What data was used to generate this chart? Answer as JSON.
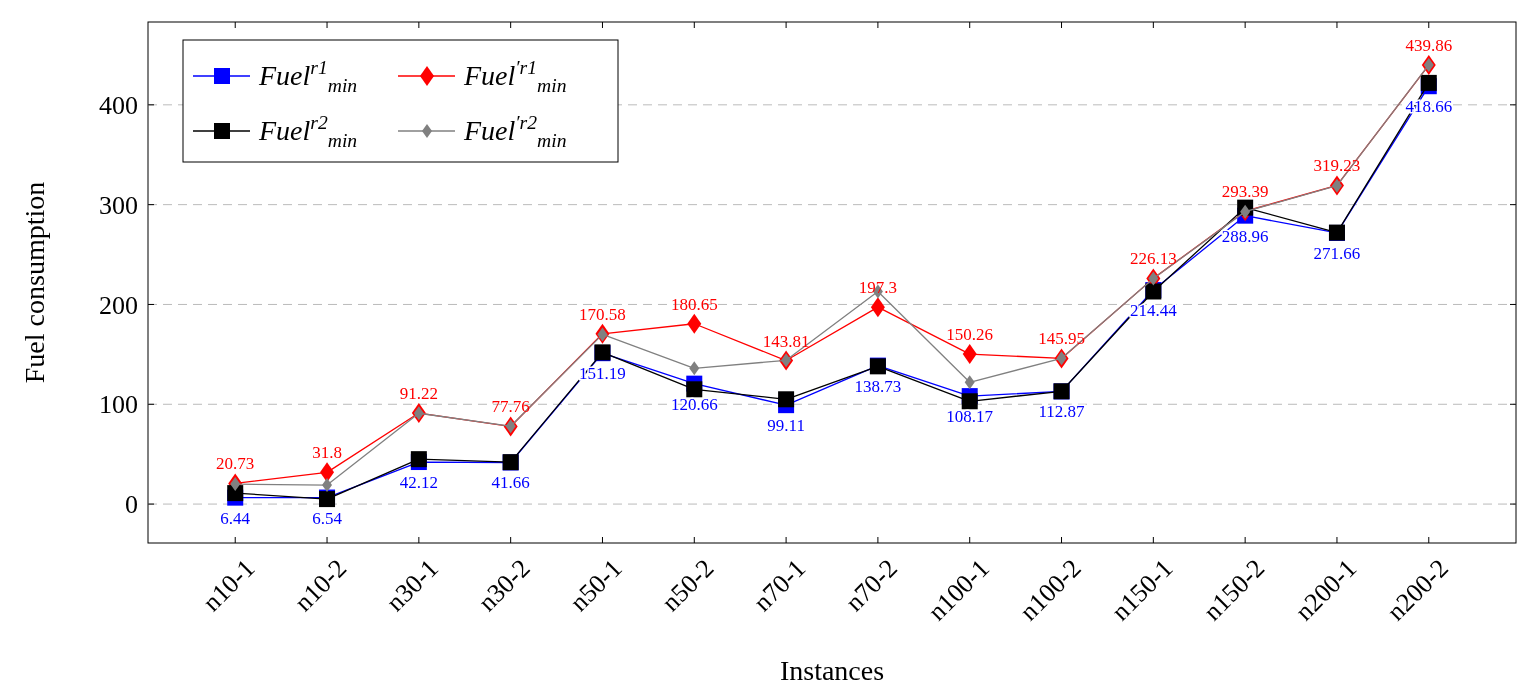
{
  "chart_data": {
    "type": "line",
    "xlabel": "Instances",
    "ylabel": "Fuel consumption",
    "categories": [
      "n10-1",
      "n10-2",
      "n30-1",
      "n30-2",
      "n50-1",
      "n50-2",
      "n70-1",
      "n70-2",
      "n100-1",
      "n100-2",
      "n150-1",
      "n150-2",
      "n200-1",
      "n200-2"
    ],
    "series": [
      {
        "name": "Fuel$^{r1}$$_{min}$",
        "color": "#0000ff",
        "marker": "square",
        "values": [
          6.44,
          6.54,
          42.12,
          41.66,
          151.19,
          120.66,
          99.11,
          138.73,
          108.17,
          112.87,
          214.44,
          288.96,
          271.66,
          418.66
        ],
        "value_labels": [
          "6.44",
          "6.54",
          "42.12",
          "41.66",
          "151.19",
          "120.66",
          "99.11",
          "138.73",
          "108.17",
          "112.87",
          "214.44",
          "288.96",
          "271.66",
          "418.66"
        ]
      },
      {
        "name": "Fuel$^{′r1}$$_{min}$",
        "color": "#ff0000",
        "marker": "diamond",
        "values": [
          20.73,
          31.8,
          91.22,
          77.76,
          170.58,
          180.65,
          143.81,
          197.3,
          150.26,
          145.95,
          226.13,
          293.39,
          319.23,
          439.86
        ],
        "value_labels": [
          "20.73",
          "31.8",
          "91.22",
          "77.76",
          "170.58",
          "180.65",
          "143.81",
          "197.3",
          "150.26",
          "145.95",
          "226.13",
          "293.39",
          "319.23",
          "439.86"
        ]
      },
      {
        "name": "Fuel$^{r2}$$_{min}$",
        "color": "#000000",
        "marker": "square",
        "values": [
          11,
          5,
          45,
          42,
          152,
          115,
          105,
          138,
          103,
          113,
          213,
          297,
          272,
          422
        ]
      },
      {
        "name": "Fuel$^{′r2}$$_{min}$",
        "color": "#808080",
        "marker": "diamond",
        "values": [
          20,
          19,
          91,
          78,
          170,
          136,
          144,
          213,
          122,
          146,
          226,
          293,
          319,
          440
        ]
      }
    ],
    "ylim": [
      -39,
      483
    ],
    "yticks": [
      0,
      100,
      200,
      300,
      400
    ],
    "grid": "y",
    "legend": "top left",
    "line_style": "solid"
  }
}
